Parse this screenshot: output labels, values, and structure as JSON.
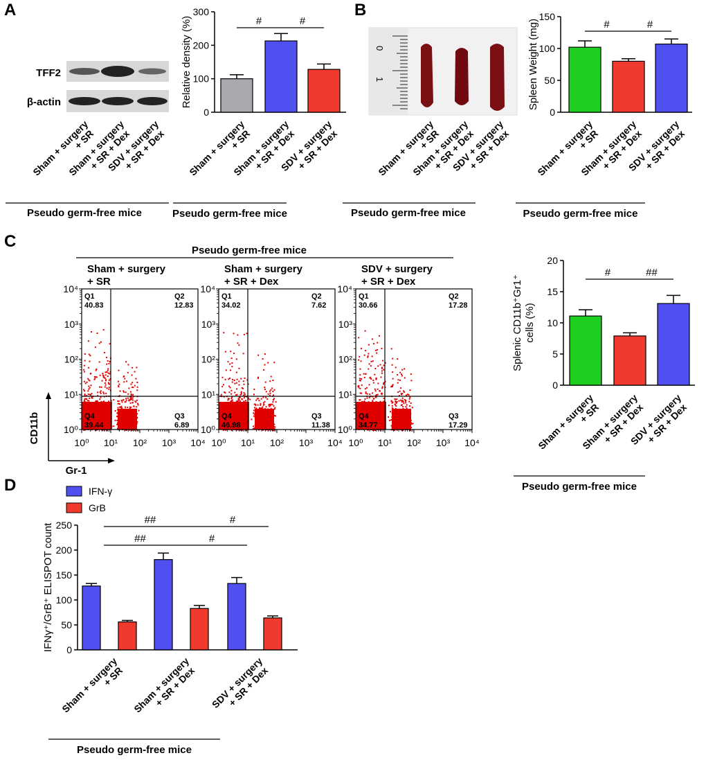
{
  "panels": {
    "A": {
      "letter": "A",
      "blot": {
        "labels": [
          "TFF2",
          "β-actin"
        ],
        "lanes": [
          "Sham + surgery\n+ SR",
          "Sham + surgery\n+ SR + Dex",
          "SDV + surgery\n+ SR + Dex"
        ],
        "group_label": "Pseudo germ-free mice"
      }
    },
    "B": {
      "letter": "B",
      "photo": {
        "ruler_labels": [
          "0",
          "1"
        ],
        "lanes": [
          "Sham + surgery\n+ SR",
          "Sham + surgery\n+ SR + Dex",
          "SDV + surgery\n+ SR + Dex"
        ],
        "group_label": "Pseudo germ-free mice"
      }
    },
    "C": {
      "letter": "C",
      "flow": {
        "title": "Pseudo germ-free mice",
        "y_axis_label": "CD11b",
        "x_axis_label": "Gr-1",
        "tick_labels": [
          "10⁰",
          "10¹",
          "10²",
          "10³",
          "10⁴"
        ],
        "plots": [
          {
            "title": "Sham + surgery\n+ SR",
            "q1": "40.83",
            "q2": "12.83",
            "q3": "6.89",
            "q4": "39.44"
          },
          {
            "title": "Sham + surgery\n+ SR + Dex",
            "q1": "34.02",
            "q2": "7.62",
            "q3": "11.38",
            "q4": "46.98"
          },
          {
            "title": "SDV + surgery\n+ SR + Dex",
            "q1": "30.66",
            "q2": "17.28",
            "q3": "17.29",
            "q4": "34.77"
          }
        ]
      }
    },
    "D": {
      "letter": "D"
    }
  },
  "chart_data": [
    {
      "id": "A-bar",
      "type": "bar",
      "categories": [
        "Sham + surgery\n+ SR",
        "Sham + surgery\n+ SR + Dex",
        "SDV + surgery\n+ SR + Dex"
      ],
      "values": [
        100,
        213,
        128
      ],
      "errors": [
        12,
        22,
        16
      ],
      "colors": [
        "#a8a8ae",
        "#5050f0",
        "#f03a2e"
      ],
      "ylabel": "Relative density (%)",
      "ylim": [
        0,
        300
      ],
      "yticks": [
        0,
        100,
        200,
        300
      ],
      "significance": [
        {
          "from": 0,
          "to": 1,
          "label": "#"
        },
        {
          "from": 1,
          "to": 2,
          "label": "#"
        }
      ],
      "group_label": "Pseudo germ-free mice"
    },
    {
      "id": "B-bar",
      "type": "bar",
      "categories": [
        "Sham + surgery\n+ SR",
        "Sham + surgery\n+ SR + Dex",
        "SDV + surgery\n+ SR + Dex"
      ],
      "values": [
        102,
        80,
        107
      ],
      "errors": [
        10,
        4,
        8
      ],
      "colors": [
        "#1fcf1f",
        "#f03a2e",
        "#5050f0"
      ],
      "ylabel": "Spleen Weight (mg)",
      "ylim": [
        0,
        150
      ],
      "yticks": [
        0,
        50,
        100,
        150
      ],
      "significance": [
        {
          "from": 0,
          "to": 1,
          "label": "#"
        },
        {
          "from": 1,
          "to": 2,
          "label": "#"
        }
      ],
      "group_label": "Pseudo germ-free mice"
    },
    {
      "id": "C-bar",
      "type": "bar",
      "categories": [
        "Sham + surgery\n+ SR",
        "Sham + surgery\n+ SR + Dex",
        "SDV + surgery\n+ SR + Dex"
      ],
      "values": [
        11.1,
        7.9,
        13.1
      ],
      "errors": [
        1.0,
        0.5,
        1.3
      ],
      "colors": [
        "#1fcf1f",
        "#f03a2e",
        "#5050f0"
      ],
      "ylabel_line1": "Splenic CD11b⁺Gr1⁺",
      "ylabel_line2": "cells (%)",
      "ylim": [
        0,
        20
      ],
      "yticks": [
        0,
        5,
        10,
        15,
        20
      ],
      "significance": [
        {
          "from": 0,
          "to": 1,
          "label": "#"
        },
        {
          "from": 1,
          "to": 2,
          "label": "##"
        }
      ],
      "group_label": "Pseudo germ-free mice"
    },
    {
      "id": "D-bar",
      "type": "bar",
      "categories": [
        "Sham + surgery\n+ SR",
        "Sham + surgery\n+ SR + Dex",
        "SDV + surgery\n+ SR + Dex"
      ],
      "series": [
        {
          "name": "IFN-γ",
          "color": "#5050f0",
          "values": [
            128,
            181,
            133
          ],
          "errors": [
            5,
            13,
            12
          ]
        },
        {
          "name": "GrB",
          "color": "#f03a2e",
          "values": [
            56,
            83,
            64
          ],
          "errors": [
            3,
            6,
            4
          ]
        }
      ],
      "ylabel": "IFNγ⁺/GrB⁺ ELISPOT count",
      "ylim": [
        0,
        250
      ],
      "yticks": [
        0,
        50,
        100,
        150,
        200,
        250
      ],
      "significance": [
        {
          "from": "0.IFN-γ",
          "to": "1.IFN-γ",
          "label": "##",
          "level": 1
        },
        {
          "from": "1.IFN-γ",
          "to": "2.IFN-γ",
          "label": "#",
          "level": 1
        },
        {
          "from": "0.GrB",
          "to": "1.GrB",
          "label": "##",
          "level": 2
        },
        {
          "from": "1.GrB",
          "to": "2.GrB",
          "label": "#",
          "level": 2
        }
      ],
      "group_label": "Pseudo germ-free mice"
    }
  ]
}
